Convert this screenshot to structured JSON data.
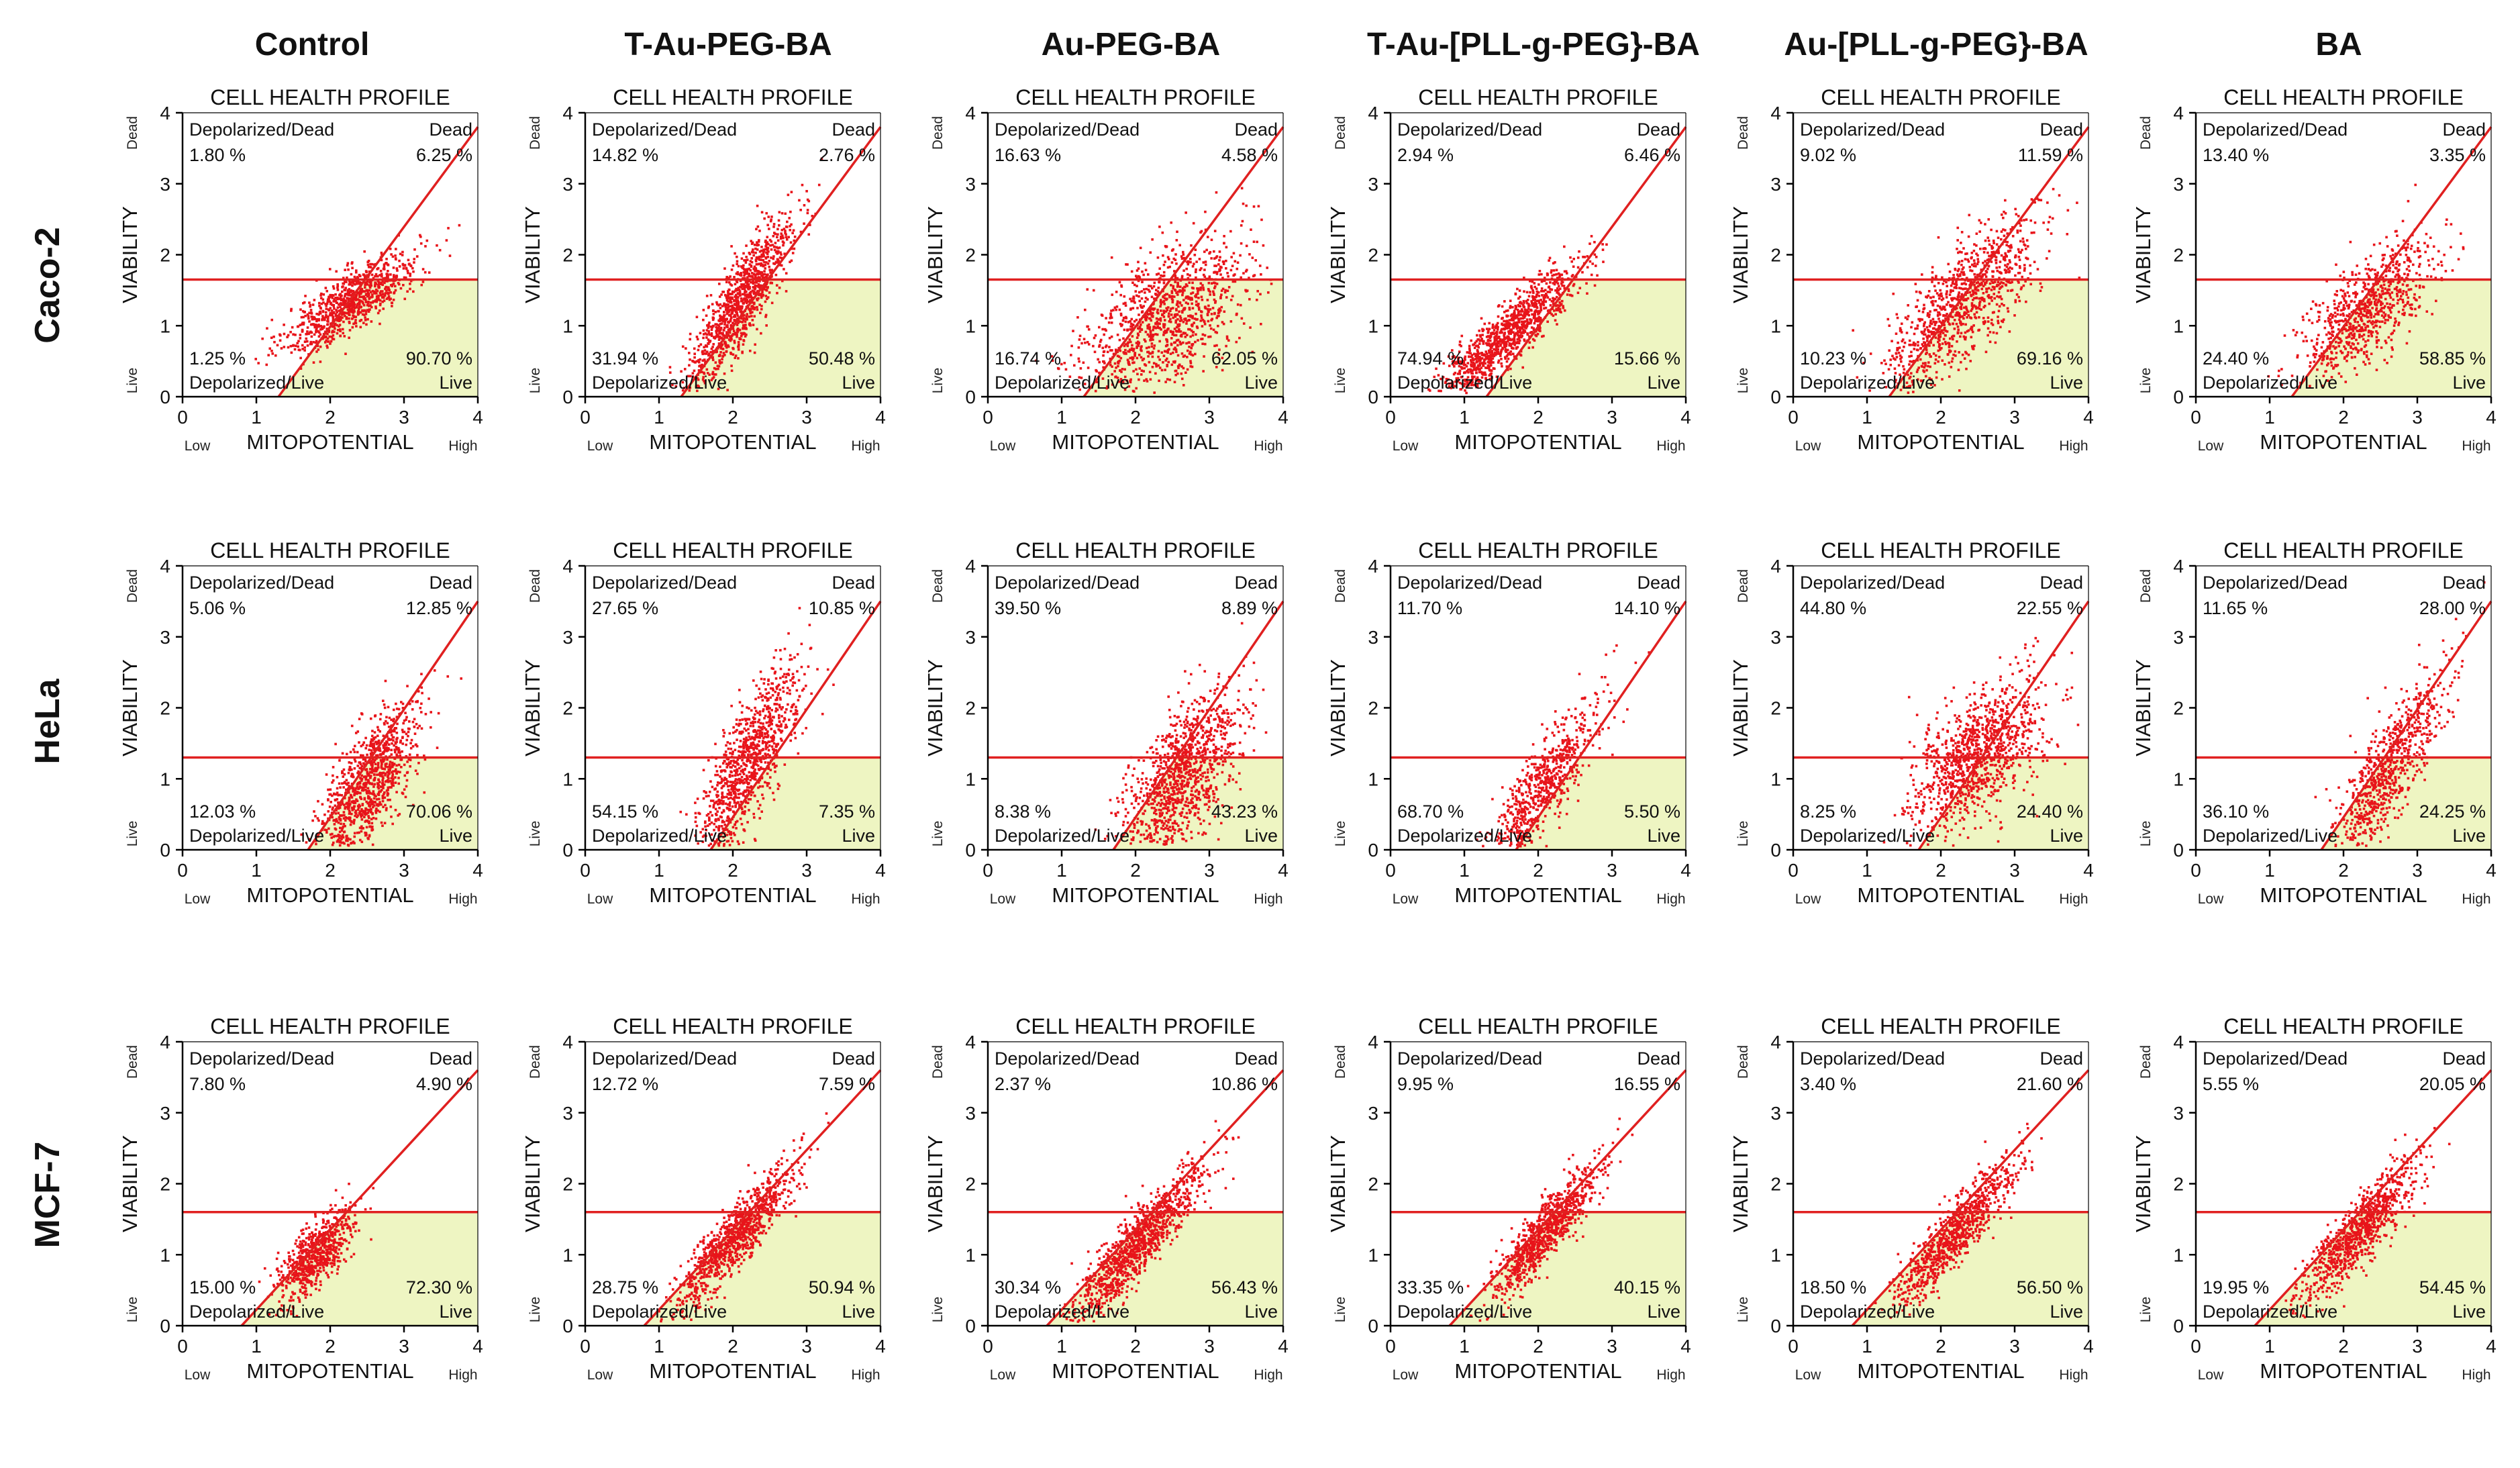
{
  "figure": {
    "columns": [
      "Control",
      "T-Au-PEG-BA",
      "Au-PEG-BA",
      "T-Au-[PLL-g-PEG}-BA",
      "Au-[PLL-g-PEG}-BA",
      "BA"
    ],
    "rows": [
      "Caco-2",
      "HeLa",
      "MCF-7"
    ]
  },
  "colors": {
    "points": "#e8141a",
    "lines": "#e02020",
    "live_region": "#eef5c2",
    "axis": "#000000"
  },
  "chart_data": {
    "type": "scatter",
    "panel_title": "CELL HEALTH PROFILE",
    "xlabel": "MITOPOTENTIAL",
    "ylabel": "VIABILITY",
    "x_low_label": "Low",
    "x_high_label": "High",
    "y_dead_label": "Dead",
    "y_live_label": "Live",
    "quadrant_labels": {
      "top_left": "Depolarized/Dead",
      "top_right": "Dead",
      "bottom_left": "Depolarized/Live",
      "bottom_right": "Live"
    },
    "xlim": [
      0,
      4
    ],
    "ylim": [
      0,
      4
    ],
    "xticks": [
      "0",
      "1",
      "2",
      "3",
      "4"
    ],
    "yticks": [
      "0",
      "1",
      "2",
      "3",
      "4"
    ],
    "panels": [
      {
        "row": "Caco-2",
        "column": "Control",
        "depolarized_dead": "1.80 %",
        "dead": "6.25 %",
        "depolarized_live": "1.25 %",
        "live": "90.70 %",
        "threshold_y": 1.65,
        "diag": [
          [
            1.3,
            0
          ],
          [
            4,
            3.8
          ]
        ]
      },
      {
        "row": "Caco-2",
        "column": "T-Au-PEG-BA",
        "depolarized_dead": "14.82 %",
        "dead": "2.76 %",
        "depolarized_live": "31.94 %",
        "live": "50.48 %",
        "threshold_y": 1.65,
        "diag": [
          [
            1.3,
            0
          ],
          [
            4,
            3.8
          ]
        ]
      },
      {
        "row": "Caco-2",
        "column": "Au-PEG-BA",
        "depolarized_dead": "16.63 %",
        "dead": "4.58 %",
        "depolarized_live": "16.74 %",
        "live": "62.05 %",
        "threshold_y": 1.65,
        "diag": [
          [
            1.3,
            0
          ],
          [
            4,
            3.8
          ]
        ]
      },
      {
        "row": "Caco-2",
        "column": "T-Au-[PLL-g-PEG}-BA",
        "depolarized_dead": "2.94 %",
        "dead": "6.46 %",
        "depolarized_live": "74.94 %",
        "live": "15.66 %",
        "threshold_y": 1.65,
        "diag": [
          [
            1.3,
            0
          ],
          [
            4,
            3.8
          ]
        ]
      },
      {
        "row": "Caco-2",
        "column": "Au-[PLL-g-PEG}-BA",
        "depolarized_dead": "9.02 %",
        "dead": "11.59 %",
        "depolarized_live": "10.23 %",
        "live": "69.16 %",
        "threshold_y": 1.65,
        "diag": [
          [
            1.3,
            0
          ],
          [
            4,
            3.8
          ]
        ]
      },
      {
        "row": "Caco-2",
        "column": "BA",
        "depolarized_dead": "13.40 %",
        "dead": "3.35 %",
        "depolarized_live": "24.40 %",
        "live": "58.85 %",
        "threshold_y": 1.65,
        "diag": [
          [
            1.3,
            0
          ],
          [
            4,
            3.8
          ]
        ]
      },
      {
        "row": "HeLa",
        "column": "Control",
        "depolarized_dead": "5.06 %",
        "dead": "12.85 %",
        "depolarized_live": "12.03 %",
        "live": "70.06 %",
        "threshold_y": 1.3,
        "diag": [
          [
            1.7,
            0
          ],
          [
            4,
            3.5
          ]
        ]
      },
      {
        "row": "HeLa",
        "column": "T-Au-PEG-BA",
        "depolarized_dead": "27.65 %",
        "dead": "10.85 %",
        "depolarized_live": "54.15 %",
        "live": "7.35 %",
        "threshold_y": 1.3,
        "diag": [
          [
            1.7,
            0
          ],
          [
            4,
            3.5
          ]
        ]
      },
      {
        "row": "HeLa",
        "column": "Au-PEG-BA",
        "depolarized_dead": "39.50 %",
        "dead": "8.89 %",
        "depolarized_live": "8.38 %",
        "live": "43.23 %",
        "threshold_y": 1.3,
        "diag": [
          [
            1.7,
            0
          ],
          [
            4,
            3.5
          ]
        ]
      },
      {
        "row": "HeLa",
        "column": "T-Au-[PLL-g-PEG}-BA",
        "depolarized_dead": "11.70 %",
        "dead": "14.10 %",
        "depolarized_live": "68.70 %",
        "live": "5.50 %",
        "threshold_y": 1.3,
        "diag": [
          [
            1.7,
            0
          ],
          [
            4,
            3.5
          ]
        ]
      },
      {
        "row": "HeLa",
        "column": "Au-[PLL-g-PEG}-BA",
        "depolarized_dead": "44.80 %",
        "dead": "22.55 %",
        "depolarized_live": "8.25 %",
        "live": "24.40 %",
        "threshold_y": 1.3,
        "diag": [
          [
            1.7,
            0
          ],
          [
            4,
            3.5
          ]
        ]
      },
      {
        "row": "HeLa",
        "column": "BA",
        "depolarized_dead": "11.65 %",
        "dead": "28.00 %",
        "depolarized_live": "36.10 %",
        "live": "24.25 %",
        "threshold_y": 1.3,
        "diag": [
          [
            1.7,
            0
          ],
          [
            4,
            3.5
          ]
        ]
      },
      {
        "row": "MCF-7",
        "column": "Control",
        "depolarized_dead": "7.80 %",
        "dead": "4.90 %",
        "depolarized_live": "15.00 %",
        "live": "72.30 %",
        "threshold_y": 1.6,
        "diag": [
          [
            0.8,
            0
          ],
          [
            4,
            3.6
          ]
        ]
      },
      {
        "row": "MCF-7",
        "column": "T-Au-PEG-BA",
        "depolarized_dead": "12.72 %",
        "dead": "7.59 %",
        "depolarized_live": "28.75 %",
        "live": "50.94 %",
        "threshold_y": 1.6,
        "diag": [
          [
            0.8,
            0
          ],
          [
            4,
            3.6
          ]
        ]
      },
      {
        "row": "MCF-7",
        "column": "Au-PEG-BA",
        "depolarized_dead": "2.37 %",
        "dead": "10.86 %",
        "depolarized_live": "30.34 %",
        "live": "56.43 %",
        "threshold_y": 1.6,
        "diag": [
          [
            0.8,
            0
          ],
          [
            4,
            3.6
          ]
        ]
      },
      {
        "row": "MCF-7",
        "column": "T-Au-[PLL-g-PEG}-BA",
        "depolarized_dead": "9.95 %",
        "dead": "16.55 %",
        "depolarized_live": "33.35 %",
        "live": "40.15 %",
        "threshold_y": 1.6,
        "diag": [
          [
            0.8,
            0
          ],
          [
            4,
            3.6
          ]
        ]
      },
      {
        "row": "MCF-7",
        "column": "Au-[PLL-g-PEG}-BA",
        "depolarized_dead": "3.40 %",
        "dead": "21.60 %",
        "depolarized_live": "18.50 %",
        "live": "56.50 %",
        "threshold_y": 1.6,
        "diag": [
          [
            0.8,
            0
          ],
          [
            4,
            3.6
          ]
        ]
      },
      {
        "row": "MCF-7",
        "column": "BA",
        "depolarized_dead": "5.55 %",
        "dead": "20.05 %",
        "depolarized_live": "19.95 %",
        "live": "54.45 %",
        "threshold_y": 1.6,
        "diag": [
          [
            0.8,
            0
          ],
          [
            4,
            3.6
          ]
        ]
      }
    ]
  }
}
